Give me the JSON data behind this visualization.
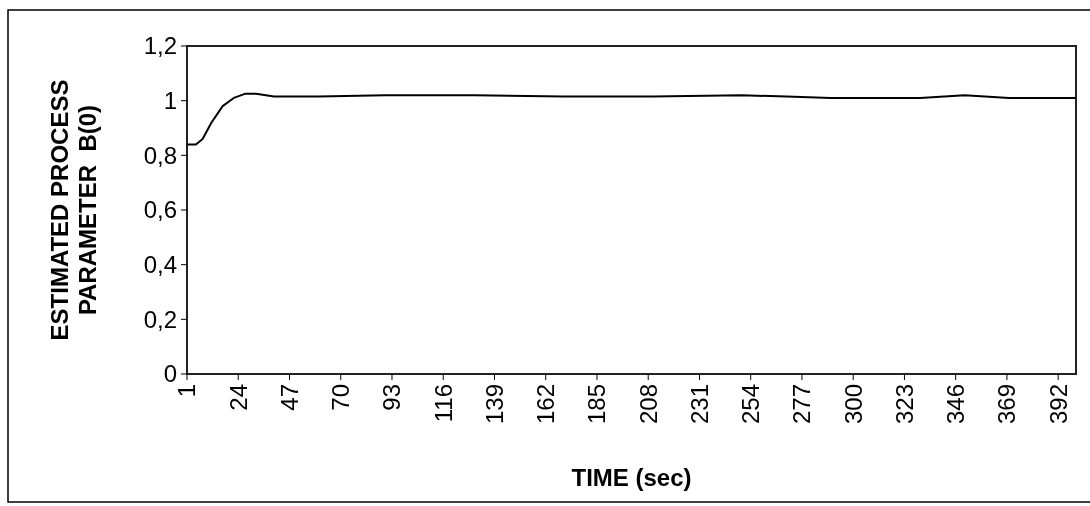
{
  "chart_data": {
    "type": "line",
    "xlabel": "TIME (sec)",
    "ylabel": "ESTIMATED PROCESS PARAMETER  B(0)",
    "xlim": [
      1,
      400
    ],
    "xticks": [
      1,
      24,
      47,
      70,
      93,
      116,
      139,
      162,
      185,
      208,
      231,
      254,
      277,
      300,
      323,
      346,
      369,
      392
    ],
    "ylim": [
      0,
      1.2
    ],
    "yticks": [
      {
        "value": 0,
        "label": "0"
      },
      {
        "value": 0.2,
        "label": "0,2"
      },
      {
        "value": 0.4,
        "label": "0,4"
      },
      {
        "value": 0.6,
        "label": "0,6"
      },
      {
        "value": 0.8,
        "label": "0,8"
      },
      {
        "value": 1,
        "label": "1"
      },
      {
        "value": 1.2,
        "label": "1,2"
      }
    ],
    "line_style": "solid",
    "series": [
      {
        "color": "#000000",
        "x": [
          1,
          5,
          8,
          12,
          17,
          22,
          27,
          32,
          40,
          60,
          90,
          130,
          170,
          210,
          250,
          270,
          290,
          310,
          330,
          350,
          370,
          400
        ],
        "values": [
          0.84,
          0.84,
          0.86,
          0.92,
          0.98,
          1.01,
          1.025,
          1.025,
          1.015,
          1.015,
          1.02,
          1.02,
          1.015,
          1.015,
          1.02,
          1.015,
          1.01,
          1.01,
          1.01,
          1.02,
          1.01,
          1.01
        ]
      }
    ]
  }
}
